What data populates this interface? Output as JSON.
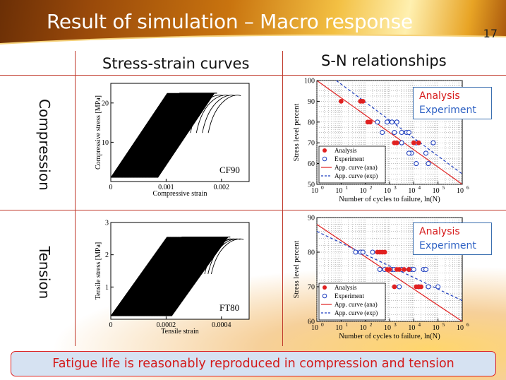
{
  "slide": {
    "title": "Result of simulation – Macro response",
    "page_number": "17",
    "footer": "Fatigue life is reasonably reproduced in compression and tension"
  },
  "table": {
    "col_headers": [
      "Stress-strain curves",
      "S-N relationships"
    ],
    "row_headers": [
      "Compression",
      "Tension"
    ]
  },
  "legend_box": {
    "analysis": "Analysis",
    "experiment": "Experiment"
  },
  "colors": {
    "analysis": "#e02020",
    "experiment": "#1f3fbf",
    "header_gold": "#e8a425",
    "banner_bg": "#d6e2f2"
  },
  "chart_data": [
    {
      "id": "ss_compression",
      "type": "line",
      "title": "",
      "xlabel": "Compressive strain",
      "ylabel": "Compressive stress [MPa]",
      "xlim": [
        0,
        0.0025
      ],
      "ylim": [
        0,
        25
      ],
      "x_ticks": [
        {
          "v": 0,
          "label": "0"
        },
        {
          "v": 0.001,
          "label": "0.001"
        },
        {
          "v": 0.002,
          "label": "0.002"
        }
      ],
      "y_ticks": [
        {
          "v": 10,
          "label": "10"
        },
        {
          "v": 20,
          "label": "20"
        }
      ],
      "annotation": "CF90",
      "peak_stress": 22.5,
      "max_level": 22.5,
      "min_level": 1,
      "band_start_strain": 0.0,
      "band_end_strain": 0.00085,
      "final_strain": 0.00235,
      "ramp_strain": 0.00107
    },
    {
      "id": "sn_compression",
      "type": "scatter",
      "title": "",
      "xlabel": "Number of cycles to failure, ln(N)",
      "ylabel": "Stress level percent",
      "xlim": [
        0,
        6
      ],
      "ylim": [
        50,
        100
      ],
      "grid": true,
      "x_ticks": [
        {
          "v": 0,
          "label": "10",
          "sup": "0"
        },
        {
          "v": 1,
          "label": "10",
          "sup": "1"
        },
        {
          "v": 2,
          "label": "10",
          "sup": "2"
        },
        {
          "v": 3,
          "label": "10",
          "sup": "3"
        },
        {
          "v": 4,
          "label": "10",
          "sup": "4"
        },
        {
          "v": 5,
          "label": "10",
          "sup": "5"
        },
        {
          "v": 6,
          "label": "10",
          "sup": "6"
        }
      ],
      "y_ticks": [
        {
          "v": 50,
          "label": "50"
        },
        {
          "v": 60,
          "label": "60"
        },
        {
          "v": 70,
          "label": "70"
        },
        {
          "v": 80,
          "label": "80"
        },
        {
          "v": 90,
          "label": "90"
        },
        {
          "v": 100,
          "label": "100"
        }
      ],
      "legend": [
        "Analysis",
        "Experiment",
        "App. curve (ana)",
        "App. curve (exp)"
      ],
      "series": [
        {
          "name": "Analysis",
          "x": [
            1.0,
            1.8,
            1.9,
            2.1,
            2.2,
            3.2,
            3.3,
            4.0,
            4.2
          ],
          "y": [
            90,
            90,
            90,
            80,
            80,
            70,
            70,
            70,
            70
          ]
        },
        {
          "name": "Experiment",
          "x": [
            2.5,
            2.9,
            3.1,
            3.2,
            3.3,
            3.5,
            3.7,
            3.8,
            3.9,
            2.7,
            3.5,
            3.8,
            4.1,
            4.5,
            4.6,
            4.8,
            4.1
          ],
          "y": [
            80,
            80,
            80,
            75,
            80,
            75,
            75,
            75,
            65,
            75,
            70,
            65,
            60,
            65,
            60,
            70,
            70
          ]
        },
        {
          "name": "App. curve (ana)",
          "x": [
            0,
            6
          ],
          "y": [
            100,
            50
          ]
        },
        {
          "name": "App. curve (exp)",
          "x": [
            0.8,
            6
          ],
          "y": [
            100,
            55
          ]
        }
      ]
    },
    {
      "id": "ss_tension",
      "type": "line",
      "title": "",
      "xlabel": "Tensile strain",
      "ylabel": "Tensile stress [MPa]",
      "xlim": [
        0,
        0.0005
      ],
      "ylim": [
        0,
        3
      ],
      "x_ticks": [
        {
          "v": 0,
          "label": "0"
        },
        {
          "v": 0.0002,
          "label": "0.0002"
        },
        {
          "v": 0.0004,
          "label": "0.0004"
        }
      ],
      "y_ticks": [
        {
          "v": 1,
          "label": "1"
        },
        {
          "v": 2,
          "label": "2"
        },
        {
          "v": 3,
          "label": "3"
        }
      ],
      "annotation": "FT80",
      "peak_stress": 2.55,
      "max_level": 2.55,
      "min_level": 0.1,
      "band_start_strain": 0.0,
      "band_end_strain": 0.00022,
      "final_strain": 0.00048,
      "ramp_strain": 0.000212
    },
    {
      "id": "sn_tension",
      "type": "scatter",
      "title": "",
      "xlabel": "Number of cycles to failure, ln(N)",
      "ylabel": "Stress level percent",
      "xlim": [
        0,
        6
      ],
      "ylim": [
        60,
        90
      ],
      "grid": true,
      "x_ticks": [
        {
          "v": 0,
          "label": "10",
          "sup": "0"
        },
        {
          "v": 1,
          "label": "10",
          "sup": "1"
        },
        {
          "v": 2,
          "label": "10",
          "sup": "2"
        },
        {
          "v": 3,
          "label": "10",
          "sup": "3"
        },
        {
          "v": 4,
          "label": "10",
          "sup": "4"
        },
        {
          "v": 5,
          "label": "10",
          "sup": "5"
        },
        {
          "v": 6,
          "label": "10",
          "sup": "6"
        }
      ],
      "y_ticks": [
        {
          "v": 60,
          "label": "60"
        },
        {
          "v": 70,
          "label": "70"
        },
        {
          "v": 80,
          "label": "80"
        },
        {
          "v": 90,
          "label": "90"
        }
      ],
      "legend": [
        "Analysis",
        "Experiment",
        "App. curve (ana)",
        "App. curve (exp)"
      ],
      "series": [
        {
          "name": "Analysis",
          "x": [
            2.5,
            2.6,
            2.7,
            2.8,
            3.0,
            2.9,
            3.3,
            3.4,
            3.6,
            3.8,
            4.1,
            4.2,
            4.3,
            3.2
          ],
          "y": [
            80,
            80,
            80,
            80,
            75,
            75,
            75,
            75,
            75,
            75,
            70,
            70,
            70,
            70
          ]
        },
        {
          "name": "Experiment",
          "x": [
            1.6,
            1.8,
            1.9,
            2.3,
            2.6,
            2.8,
            3.1,
            3.2,
            3.5,
            3.8,
            3.9,
            4.0,
            4.4,
            4.5,
            4.6,
            4.2,
            5.0,
            3.4
          ],
          "y": [
            80,
            80,
            80,
            80,
            75,
            75,
            75,
            75,
            75,
            75,
            75,
            75,
            75,
            75,
            70,
            70,
            70,
            70
          ]
        },
        {
          "name": "App. curve (ana)",
          "x": [
            0,
            6
          ],
          "y": [
            88,
            60
          ]
        },
        {
          "name": "App. curve (exp)",
          "x": [
            0,
            6
          ],
          "y": [
            86,
            66
          ]
        }
      ]
    }
  ]
}
